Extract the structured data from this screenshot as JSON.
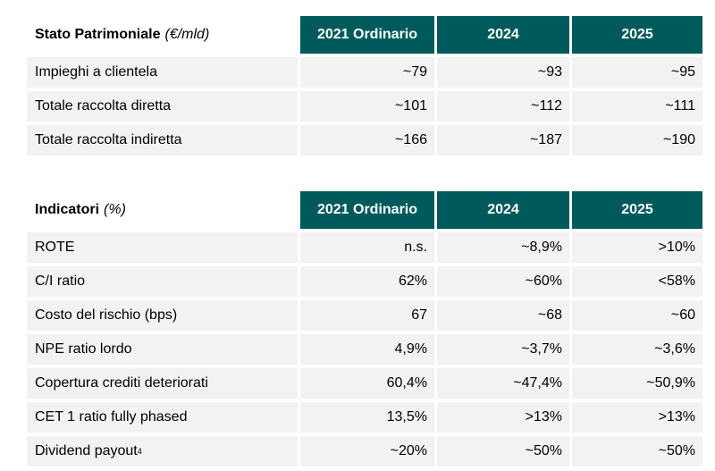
{
  "colors": {
    "header_bg": "#005a5b",
    "header_text": "#ffffff",
    "row_bg": "#f2f2f2"
  },
  "table1": {
    "title": "Stato Patrimoniale",
    "unit": "(€/mld)",
    "columns": [
      "2021 Ordinario",
      "2024",
      "2025"
    ],
    "rows": [
      {
        "label": "Impieghi a clientela",
        "values": [
          "~79",
          "~93",
          "~95"
        ]
      },
      {
        "label": "Totale raccolta diretta",
        "values": [
          "~101",
          "~112",
          "~111"
        ]
      },
      {
        "label": "Totale raccolta indiretta",
        "values": [
          "~166",
          "~187",
          "~190"
        ]
      }
    ]
  },
  "table2": {
    "title": "Indicatori",
    "unit": "(%)",
    "columns": [
      "2021 Ordinario",
      "2024",
      "2025"
    ],
    "rows": [
      {
        "label": "ROTE",
        "values": [
          "n.s.",
          "~8,9%",
          ">10%"
        ]
      },
      {
        "label": "C/I ratio",
        "values": [
          "62%",
          "~60%",
          "<58%"
        ]
      },
      {
        "label": "Costo del rischio (bps)",
        "values": [
          "67",
          "~68",
          "~60"
        ]
      },
      {
        "label": "NPE ratio lordo",
        "values": [
          "4,9%",
          "~3,7%",
          "~3,6%"
        ]
      },
      {
        "label": "Copertura crediti deteriorati",
        "values": [
          "60,4%",
          "~47,4%",
          "~50,9%"
        ]
      },
      {
        "label": "CET 1 ratio fully phased",
        "values": [
          "13,5%",
          ">13%",
          ">13%"
        ]
      },
      {
        "label": "Dividend payout",
        "footnote": "4",
        "values": [
          "~20%",
          "~50%",
          "~50%"
        ]
      }
    ]
  }
}
